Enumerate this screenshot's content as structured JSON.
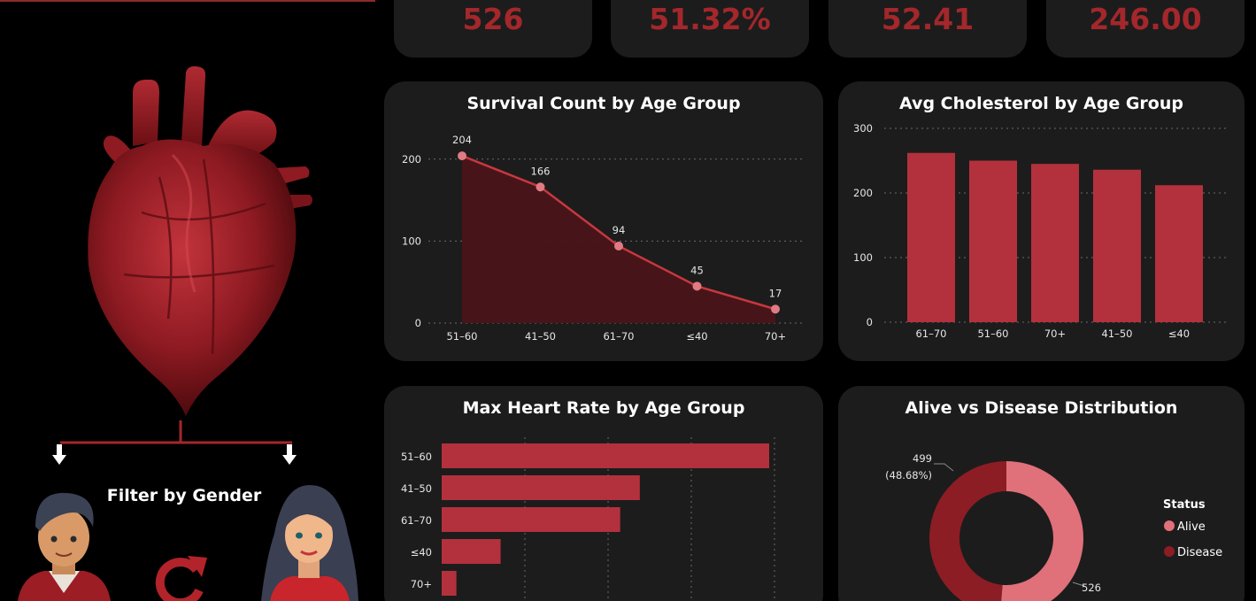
{
  "kpis": [
    "526",
    "51.32%",
    "52.41",
    "246.00"
  ],
  "filter": {
    "label": "Filter by Gender"
  },
  "colors": {
    "accent": "#a3272b",
    "bar": "#b3313c",
    "area_fill": "#4a1519",
    "line": "#c8373f",
    "alive": "#e0707a",
    "disease": "#8c1d24",
    "card": "#1c1c1c"
  },
  "chart_data": [
    {
      "type": "area",
      "title": "Survival Count by Age Group",
      "categories": [
        "51–60",
        "41–50",
        "61–70",
        "≤40",
        "70+"
      ],
      "values": [
        204,
        166,
        94,
        45,
        17
      ],
      "yticks": [
        0,
        100,
        200
      ],
      "ylim": [
        0,
        230
      ]
    },
    {
      "type": "bar",
      "title": "Avg Cholesterol by Age Group",
      "categories": [
        "61–70",
        "51–60",
        "70+",
        "41–50",
        "≤40"
      ],
      "values": [
        262,
        250,
        245,
        236,
        212
      ],
      "yticks": [
        0,
        100,
        200,
        300
      ],
      "ylim": [
        0,
        300
      ]
    },
    {
      "type": "bar",
      "orientation": "horizontal",
      "title": "Max Heart Rate by Age Group",
      "categories": [
        "51–60",
        "41–50",
        "61–70",
        "≤40",
        "70+"
      ],
      "values": [
        1000,
        605,
        545,
        180,
        45
      ]
    },
    {
      "type": "pie",
      "title": "Alive vs Disease Distribution",
      "legend_title": "Status",
      "slices": [
        {
          "name": "Alive",
          "value": 526,
          "label": "526"
        },
        {
          "name": "Disease",
          "value": 499,
          "label": "499",
          "pct_label": "(48.68%)"
        }
      ]
    }
  ]
}
